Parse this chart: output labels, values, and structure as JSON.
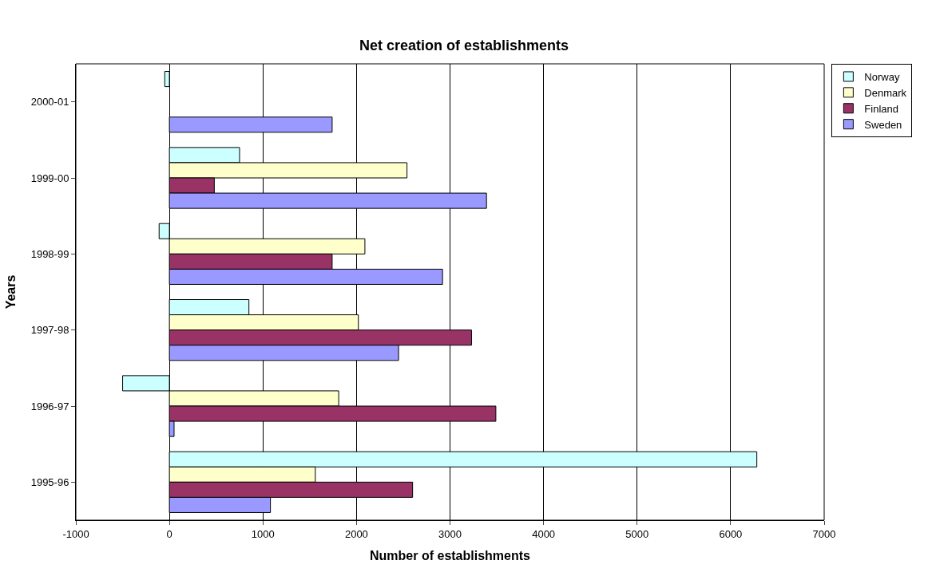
{
  "chart_data": {
    "type": "bar",
    "orientation": "horizontal",
    "title": "Net creation of establishments",
    "xlabel": "Number of establishments",
    "ylabel": "Years",
    "categories": [
      "2000-01",
      "1999-00",
      "1998-99",
      "1997-98",
      "1996-97",
      "1995-96"
    ],
    "series": [
      {
        "name": "Norway",
        "color": "#ccffff",
        "values": [
          -50,
          750,
          -110,
          850,
          -500,
          6280
        ]
      },
      {
        "name": "Denmark",
        "color": "#ffffcc",
        "values": [
          null,
          2540,
          2090,
          2020,
          1810,
          1560
        ]
      },
      {
        "name": "Finland",
        "color": "#993366",
        "values": [
          null,
          480,
          1740,
          3230,
          3490,
          2600
        ]
      },
      {
        "name": "Sweden",
        "color": "#9999ff",
        "values": [
          1740,
          3390,
          2920,
          2450,
          50,
          1080
        ]
      }
    ],
    "xlim": [
      -1000,
      7000
    ],
    "xticks": [
      -1000,
      0,
      1000,
      2000,
      3000,
      4000,
      5000,
      6000,
      7000
    ],
    "grid": "x",
    "legend": "top right"
  }
}
